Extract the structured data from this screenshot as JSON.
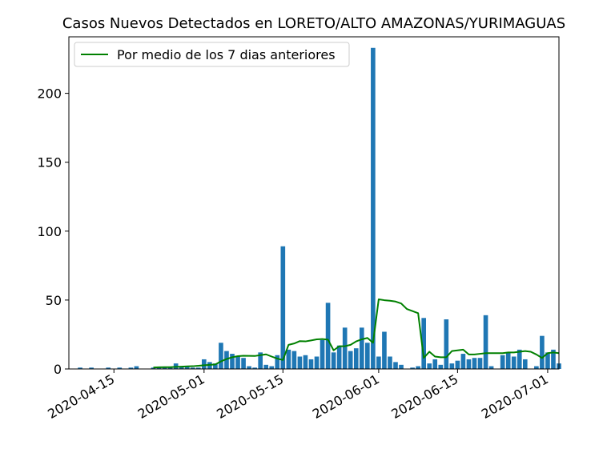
{
  "chart_data": {
    "type": "bar",
    "title": "Casos Nuevos Detectados en LORETO/ALTO AMAZONAS/YURIMAGUAS",
    "xlabel": "",
    "ylabel": "",
    "ylim": [
      0,
      241
    ],
    "xlim": [
      "2020-04-07",
      "2020-07-03"
    ],
    "x_ticks": [
      "2020-04-15",
      "2020-05-01",
      "2020-05-15",
      "2020-06-01",
      "2020-06-15",
      "2020-07-01"
    ],
    "y_ticks": [
      0,
      50,
      100,
      150,
      200
    ],
    "legend": {
      "position": "top-left",
      "entries": [
        "Por medio de los 7 dias anteriores"
      ]
    },
    "colors": {
      "bars": "#1f77b4",
      "line": "#008000"
    },
    "bars": [
      {
        "x": "2020-04-09",
        "y": 1
      },
      {
        "x": "2020-04-11",
        "y": 1
      },
      {
        "x": "2020-04-14",
        "y": 1
      },
      {
        "x": "2020-04-16",
        "y": 1
      },
      {
        "x": "2020-04-17",
        "y": 0
      },
      {
        "x": "2020-04-18",
        "y": 1
      },
      {
        "x": "2020-04-19",
        "y": 2
      },
      {
        "x": "2020-04-22",
        "y": 1
      },
      {
        "x": "2020-04-23",
        "y": 1
      },
      {
        "x": "2020-04-24",
        "y": 1
      },
      {
        "x": "2020-04-25",
        "y": 1
      },
      {
        "x": "2020-04-26",
        "y": 4
      },
      {
        "x": "2020-04-27",
        "y": 2
      },
      {
        "x": "2020-04-28",
        "y": 2
      },
      {
        "x": "2020-04-29",
        "y": 1
      },
      {
        "x": "2020-04-30",
        "y": 1
      },
      {
        "x": "2020-05-01",
        "y": 7
      },
      {
        "x": "2020-05-02",
        "y": 5
      },
      {
        "x": "2020-05-03",
        "y": 4
      },
      {
        "x": "2020-05-04",
        "y": 19
      },
      {
        "x": "2020-05-05",
        "y": 13
      },
      {
        "x": "2020-05-06",
        "y": 11
      },
      {
        "x": "2020-05-07",
        "y": 9
      },
      {
        "x": "2020-05-08",
        "y": 8
      },
      {
        "x": "2020-05-09",
        "y": 2
      },
      {
        "x": "2020-05-10",
        "y": 1
      },
      {
        "x": "2020-05-11",
        "y": 12
      },
      {
        "x": "2020-05-12",
        "y": 3
      },
      {
        "x": "2020-05-13",
        "y": 2
      },
      {
        "x": "2020-05-14",
        "y": 10
      },
      {
        "x": "2020-05-15",
        "y": 89
      },
      {
        "x": "2020-05-16",
        "y": 14
      },
      {
        "x": "2020-05-17",
        "y": 13
      },
      {
        "x": "2020-05-18",
        "y": 9
      },
      {
        "x": "2020-05-19",
        "y": 10
      },
      {
        "x": "2020-05-20",
        "y": 7
      },
      {
        "x": "2020-05-21",
        "y": 9
      },
      {
        "x": "2020-05-22",
        "y": 21
      },
      {
        "x": "2020-05-23",
        "y": 48
      },
      {
        "x": "2020-05-24",
        "y": 12
      },
      {
        "x": "2020-05-25",
        "y": 17
      },
      {
        "x": "2020-05-26",
        "y": 30
      },
      {
        "x": "2020-05-27",
        "y": 13
      },
      {
        "x": "2020-05-28",
        "y": 15
      },
      {
        "x": "2020-05-29",
        "y": 30
      },
      {
        "x": "2020-05-30",
        "y": 19
      },
      {
        "x": "2020-05-31",
        "y": 233
      },
      {
        "x": "2020-06-01",
        "y": 9
      },
      {
        "x": "2020-06-02",
        "y": 27
      },
      {
        "x": "2020-06-03",
        "y": 9
      },
      {
        "x": "2020-06-04",
        "y": 5
      },
      {
        "x": "2020-06-05",
        "y": 3
      },
      {
        "x": "2020-06-06",
        "y": 0
      },
      {
        "x": "2020-06-07",
        "y": 1
      },
      {
        "x": "2020-06-08",
        "y": 2
      },
      {
        "x": "2020-06-09",
        "y": 37
      },
      {
        "x": "2020-06-10",
        "y": 4
      },
      {
        "x": "2020-06-11",
        "y": 7
      },
      {
        "x": "2020-06-12",
        "y": 3
      },
      {
        "x": "2020-06-13",
        "y": 36
      },
      {
        "x": "2020-06-14",
        "y": 4
      },
      {
        "x": "2020-06-15",
        "y": 6
      },
      {
        "x": "2020-06-16",
        "y": 11
      },
      {
        "x": "2020-06-17",
        "y": 7
      },
      {
        "x": "2020-06-18",
        "y": 8
      },
      {
        "x": "2020-06-19",
        "y": 8
      },
      {
        "x": "2020-06-20",
        "y": 39
      },
      {
        "x": "2020-06-21",
        "y": 2
      },
      {
        "x": "2020-06-22",
        "y": 0
      },
      {
        "x": "2020-06-23",
        "y": 10
      },
      {
        "x": "2020-06-24",
        "y": 12
      },
      {
        "x": "2020-06-25",
        "y": 9
      },
      {
        "x": "2020-06-26",
        "y": 14
      },
      {
        "x": "2020-06-27",
        "y": 7
      },
      {
        "x": "2020-06-28",
        "y": 0
      },
      {
        "x": "2020-06-29",
        "y": 2
      },
      {
        "x": "2020-06-30",
        "y": 24
      },
      {
        "x": "2020-07-01",
        "y": 12
      },
      {
        "x": "2020-07-02",
        "y": 14
      },
      {
        "x": "2020-07-03",
        "y": 4
      }
    ],
    "series": [
      {
        "name": "Por medio de los 7 dias anteriores",
        "type": "line",
        "points": [
          {
            "x": "2020-04-22",
            "y": 1.1
          },
          {
            "x": "2020-04-23",
            "y": 1.2
          },
          {
            "x": "2020-04-24",
            "y": 1.3
          },
          {
            "x": "2020-04-25",
            "y": 1.3
          },
          {
            "x": "2020-04-26",
            "y": 1.5
          },
          {
            "x": "2020-04-27",
            "y": 1.7
          },
          {
            "x": "2020-04-28",
            "y": 1.9
          },
          {
            "x": "2020-04-29",
            "y": 2.0
          },
          {
            "x": "2020-04-30",
            "y": 2.3
          },
          {
            "x": "2020-05-01",
            "y": 2.7
          },
          {
            "x": "2020-05-02",
            "y": 3.0
          },
          {
            "x": "2020-05-03",
            "y": 3.3
          },
          {
            "x": "2020-05-04",
            "y": 5.5
          },
          {
            "x": "2020-05-05",
            "y": 7.2
          },
          {
            "x": "2020-05-06",
            "y": 8.5
          },
          {
            "x": "2020-05-07",
            "y": 9.3
          },
          {
            "x": "2020-05-08",
            "y": 9.6
          },
          {
            "x": "2020-05-09",
            "y": 9.5
          },
          {
            "x": "2020-05-10",
            "y": 9.4
          },
          {
            "x": "2020-05-11",
            "y": 10.0
          },
          {
            "x": "2020-05-12",
            "y": 10.6
          },
          {
            "x": "2020-05-13",
            "y": 9.0
          },
          {
            "x": "2020-05-14",
            "y": 7.5
          },
          {
            "x": "2020-05-15",
            "y": 6.5
          },
          {
            "x": "2020-05-16",
            "y": 17.5
          },
          {
            "x": "2020-05-17",
            "y": 18.5
          },
          {
            "x": "2020-05-18",
            "y": 20.2
          },
          {
            "x": "2020-05-19",
            "y": 20.0
          },
          {
            "x": "2020-05-20",
            "y": 20.7
          },
          {
            "x": "2020-05-21",
            "y": 21.5
          },
          {
            "x": "2020-05-22",
            "y": 21.7
          },
          {
            "x": "2020-05-23",
            "y": 21.3
          },
          {
            "x": "2020-05-24",
            "y": 13.5
          },
          {
            "x": "2020-05-25",
            "y": 16.5
          },
          {
            "x": "2020-05-26",
            "y": 16.5
          },
          {
            "x": "2020-05-27",
            "y": 17.5
          },
          {
            "x": "2020-05-28",
            "y": 20.0
          },
          {
            "x": "2020-05-29",
            "y": 21.5
          },
          {
            "x": "2020-05-30",
            "y": 22.5
          },
          {
            "x": "2020-05-31",
            "y": 19.0
          },
          {
            "x": "2020-06-01",
            "y": 50.5
          },
          {
            "x": "2020-06-02",
            "y": 49.9
          },
          {
            "x": "2020-06-03",
            "y": 49.5
          },
          {
            "x": "2020-06-04",
            "y": 48.9
          },
          {
            "x": "2020-06-05",
            "y": 47.5
          },
          {
            "x": "2020-06-06",
            "y": 43.5
          },
          {
            "x": "2020-06-07",
            "y": 42.0
          },
          {
            "x": "2020-06-08",
            "y": 40.5
          },
          {
            "x": "2020-06-09",
            "y": 8.0
          },
          {
            "x": "2020-06-10",
            "y": 12.5
          },
          {
            "x": "2020-06-11",
            "y": 9.0
          },
          {
            "x": "2020-06-12",
            "y": 8.5
          },
          {
            "x": "2020-06-13",
            "y": 8.5
          },
          {
            "x": "2020-06-14",
            "y": 13.0
          },
          {
            "x": "2020-06-15",
            "y": 13.5
          },
          {
            "x": "2020-06-16",
            "y": 14.0
          },
          {
            "x": "2020-06-17",
            "y": 10.5
          },
          {
            "x": "2020-06-18",
            "y": 10.5
          },
          {
            "x": "2020-06-19",
            "y": 11.0
          },
          {
            "x": "2020-06-20",
            "y": 11.5
          },
          {
            "x": "2020-06-21",
            "y": 11.5
          },
          {
            "x": "2020-06-22",
            "y": 11.5
          },
          {
            "x": "2020-06-23",
            "y": 11.5
          },
          {
            "x": "2020-06-24",
            "y": 12.0
          },
          {
            "x": "2020-06-25",
            "y": 12.0
          },
          {
            "x": "2020-06-26",
            "y": 12.5
          },
          {
            "x": "2020-06-27",
            "y": 13.0
          },
          {
            "x": "2020-06-28",
            "y": 12.5
          },
          {
            "x": "2020-06-29",
            "y": 10.5
          },
          {
            "x": "2020-06-30",
            "y": 8.0
          },
          {
            "x": "2020-07-01",
            "y": 11.5
          },
          {
            "x": "2020-07-02",
            "y": 12.0
          },
          {
            "x": "2020-07-03",
            "y": 11.5
          }
        ]
      }
    ]
  }
}
